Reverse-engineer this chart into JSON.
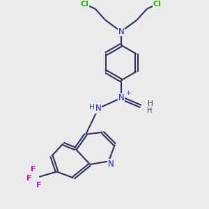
{
  "bg_color": "#ebebeb",
  "bond_color": "#2d3060",
  "N_color": "#1a1aee",
  "Cl_color": "#22bb00",
  "F_color": "#cc00cc",
  "line_width": 1.5,
  "dbo": 0.055,
  "figsize": [
    3.0,
    3.0
  ],
  "dpi": 100,
  "xlim": [
    0,
    10
  ],
  "ylim": [
    0,
    10
  ]
}
